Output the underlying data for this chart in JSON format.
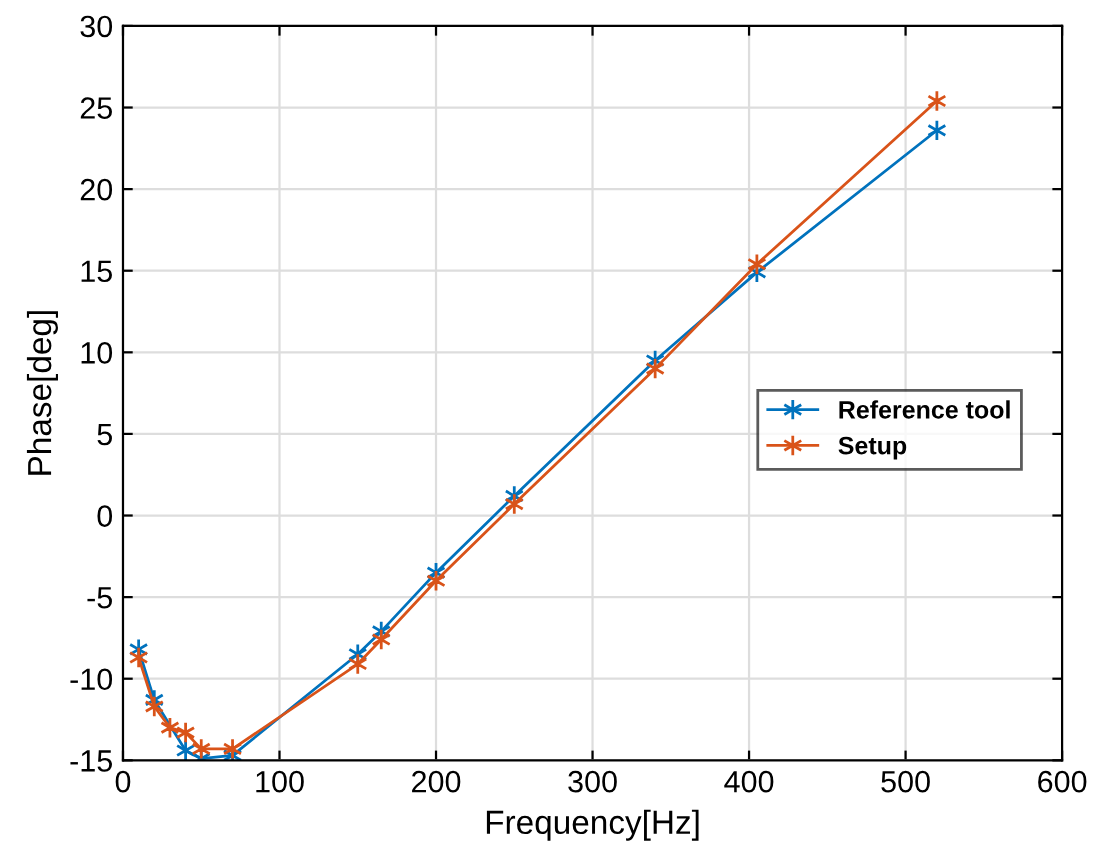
{
  "chart_data": {
    "type": "line",
    "xlabel": "Frequency[Hz]",
    "ylabel": "Phase[deg]",
    "xlim": [
      0,
      600
    ],
    "ylim": [
      -15,
      30
    ],
    "xticks": [
      0,
      100,
      200,
      300,
      400,
      500,
      600
    ],
    "yticks": [
      -15,
      -10,
      -5,
      0,
      5,
      10,
      15,
      20,
      25,
      30
    ],
    "grid": true,
    "legend": "right",
    "marker": "cross",
    "line_style": "solid",
    "series": [
      {
        "name": "Reference tool",
        "color": "#0072bd",
        "x": [
          10,
          20,
          40,
          50,
          70,
          150,
          165,
          200,
          250,
          340,
          405,
          520
        ],
        "values": [
          -8.2,
          -11.3,
          -14.4,
          -14.9,
          -14.7,
          -8.5,
          -7.1,
          -3.5,
          1.2,
          9.5,
          14.9,
          23.6
        ]
      },
      {
        "name": "Setup",
        "color": "#d95319",
        "x": [
          10,
          20,
          30,
          40,
          50,
          70,
          150,
          165,
          200,
          250,
          340,
          405,
          520
        ],
        "values": [
          -8.7,
          -11.7,
          -13.0,
          -13.3,
          -14.3,
          -14.3,
          -9.1,
          -7.6,
          -4.0,
          0.7,
          9.0,
          15.4,
          25.4
        ]
      }
    ]
  }
}
